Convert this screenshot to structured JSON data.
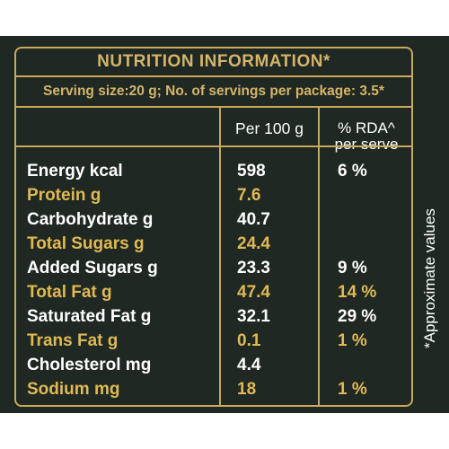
{
  "label": {
    "title": "NUTRITION INFORMATION*",
    "serving": "Serving size:20 g; No. of servings per package: 3.5*",
    "col_per100": "Per 100 g",
    "col_rda_line1": "% RDA^",
    "col_rda_line2": "per serve",
    "side_note": "*Approximate values",
    "rows": [
      {
        "name": "Energy kcal",
        "value": "598",
        "rda": "6 %",
        "tone": "white"
      },
      {
        "name": "Protein g",
        "value": "7.6",
        "rda": "",
        "tone": "gold"
      },
      {
        "name": "Carbohydrate g",
        "value": "40.7",
        "rda": "",
        "tone": "white"
      },
      {
        "name": "Total Sugars g",
        "value": "24.4",
        "rda": "",
        "tone": "gold"
      },
      {
        "name": "Added Sugars g",
        "value": "23.3",
        "rda": "9 %",
        "tone": "white"
      },
      {
        "name": "Total Fat g",
        "value": "47.4",
        "rda": "14 %",
        "tone": "gold"
      },
      {
        "name": "Saturated Fat g",
        "value": "32.1",
        "rda": "29 %",
        "tone": "white"
      },
      {
        "name": "Trans Fat g",
        "value": "0.1",
        "rda": "1 %",
        "tone": "gold"
      },
      {
        "name": "Cholesterol mg",
        "value": "4.4",
        "rda": "",
        "tone": "white"
      },
      {
        "name": "Sodium mg",
        "value": "18",
        "rda": "1 %",
        "tone": "gold"
      }
    ],
    "colors": {
      "background": "#1f2822",
      "gold": "#c9a95a",
      "gold_text": "#e0b955",
      "white_text": "#ffffff"
    }
  }
}
